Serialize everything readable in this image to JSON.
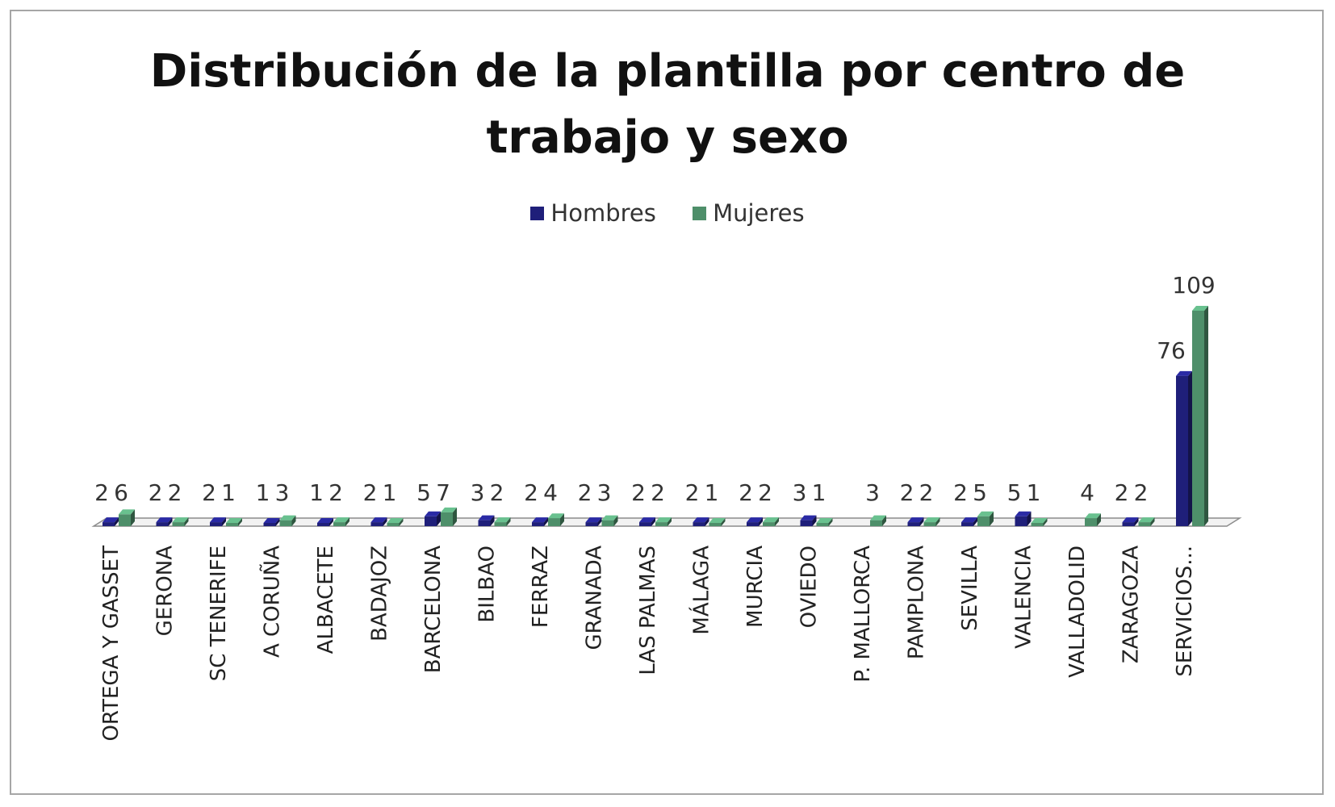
{
  "chart_data": {
    "type": "bar",
    "title_lines": [
      "Distribución de la plantilla por centro de",
      "trabajo y sexo"
    ],
    "categories": [
      "ORTEGA Y GASSET",
      "GERONA",
      "SC TENERIFE",
      "A CORUÑA",
      "ALBACETE",
      "BADAJOZ",
      "BARCELONA",
      "BILBAO",
      "FERRAZ",
      "GRANADA",
      "LAS PALMAS",
      "MÁLAGA",
      "MURCIA",
      "OVIEDO",
      "P. MALLORCA",
      "PAMPLONA",
      "SEVILLA",
      "VALENCIA",
      "VALLADOLID",
      "ZARAGOZA",
      "SERVICIOS..."
    ],
    "series": [
      {
        "name": "Hombres",
        "color": "#1f1f7a",
        "values": [
          2,
          2,
          2,
          1,
          1,
          2,
          5,
          3,
          2,
          2,
          2,
          2,
          2,
          3,
          null,
          2,
          2,
          5,
          null,
          2,
          76
        ]
      },
      {
        "name": "Mujeres",
        "color": "#4e8f6a",
        "values": [
          6,
          2,
          1,
          3,
          2,
          1,
          7,
          2,
          4,
          3,
          2,
          1,
          2,
          1,
          3,
          2,
          5,
          1,
          4,
          2,
          109
        ]
      }
    ],
    "ylim": [
      0,
      109
    ],
    "grid": false,
    "legend_position": "top"
  }
}
